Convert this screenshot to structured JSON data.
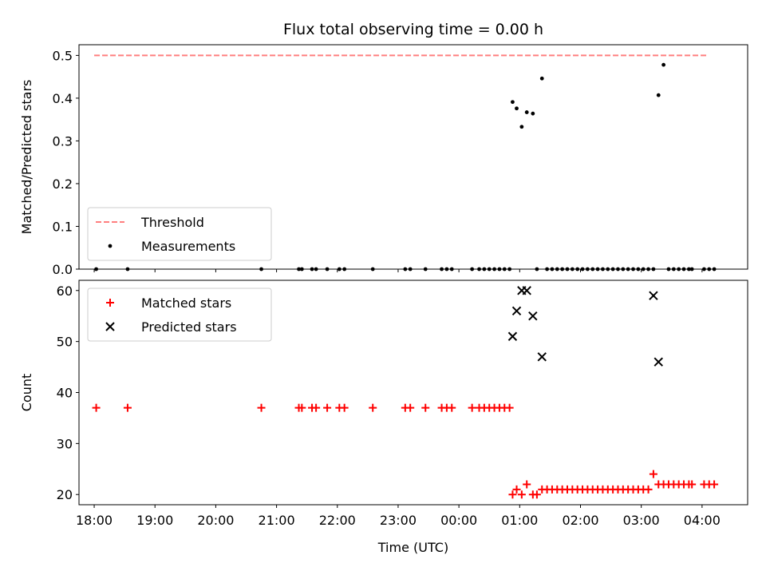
{
  "chart_data": [
    {
      "type": "scatter",
      "title": "Flux total observing time = 0.00 h",
      "xlabel": "",
      "ylabel": "Matched/Predicted stars",
      "ylim": [
        0,
        0.525
      ],
      "yticks": [
        0.0,
        0.1,
        0.2,
        0.3,
        0.4,
        0.5
      ],
      "ytick_labels": [
        "0.0",
        "0.1",
        "0.2",
        "0.3",
        "0.4",
        "0.5"
      ],
      "xlim": [
        "17:45",
        "04:45"
      ],
      "xticks": [
        "18:00",
        "19:00",
        "20:00",
        "21:00",
        "22:00",
        "23:00",
        "00:00",
        "01:00",
        "02:00",
        "03:00",
        "04:00"
      ],
      "grid": false,
      "legend": "lower-left",
      "series": [
        {
          "name": "Threshold",
          "kind": "line",
          "color": "#ff7f7f",
          "dashed": true,
          "x": [
            "18:00",
            "04:05"
          ],
          "y": [
            0.5,
            0.5
          ]
        },
        {
          "name": "Measurements",
          "kind": "dots",
          "color": "#000000",
          "x": [
            "18:02",
            "18:33",
            "20:45",
            "21:22",
            "21:25",
            "21:35",
            "21:39",
            "21:50",
            "22:02",
            "22:07",
            "22:35",
            "23:07",
            "23:12",
            "23:27",
            "23:43",
            "23:48",
            "23:53",
            "00:13",
            "00:20",
            "00:25",
            "00:30",
            "00:35",
            "00:40",
            "00:45",
            "00:50",
            "00:53",
            "00:57",
            "01:02",
            "01:07",
            "01:13",
            "01:17",
            "01:22",
            "01:27",
            "01:32",
            "01:37",
            "01:42",
            "01:47",
            "01:52",
            "01:57",
            "02:02",
            "02:07",
            "02:12",
            "02:17",
            "02:22",
            "02:27",
            "02:32",
            "02:37",
            "02:42",
            "02:47",
            "02:52",
            "02:57",
            "03:02",
            "03:07",
            "03:12",
            "03:17",
            "03:22",
            "03:27",
            "03:32",
            "03:37",
            "03:42",
            "03:47",
            "03:50",
            "04:02",
            "04:07",
            "04:12"
          ],
          "y": [
            0,
            0,
            0,
            0,
            0,
            0,
            0,
            0,
            0,
            0,
            0,
            0,
            0,
            0,
            0,
            0,
            0,
            0,
            0,
            0,
            0,
            0,
            0,
            0,
            0,
            0.391,
            0.376,
            0.333,
            0.367,
            0.364,
            0,
            0.446,
            0,
            0,
            0,
            0,
            0,
            0,
            0,
            0,
            0,
            0,
            0,
            0,
            0,
            0,
            0,
            0,
            0,
            0,
            0,
            0,
            0,
            0,
            0.407,
            0.478,
            0,
            0,
            0,
            0,
            0,
            0,
            0,
            0,
            0
          ]
        }
      ]
    },
    {
      "type": "scatter",
      "title": "",
      "xlabel": "Time (UTC)",
      "ylabel": "Count",
      "ylim": [
        18,
        62
      ],
      "yticks": [
        20,
        30,
        40,
        50,
        60
      ],
      "ytick_labels": [
        "20",
        "30",
        "40",
        "50",
        "60"
      ],
      "xlim": [
        "17:45",
        "04:45"
      ],
      "xticks": [
        "18:00",
        "19:00",
        "20:00",
        "21:00",
        "22:00",
        "23:00",
        "00:00",
        "01:00",
        "02:00",
        "03:00",
        "04:00"
      ],
      "grid": false,
      "legend": "upper-left",
      "series": [
        {
          "name": "Matched stars",
          "kind": "plus",
          "color": "#ff0000",
          "x": [
            "18:02",
            "18:33",
            "20:45",
            "21:22",
            "21:25",
            "21:35",
            "21:39",
            "21:50",
            "22:02",
            "22:07",
            "22:35",
            "23:07",
            "23:12",
            "23:27",
            "23:43",
            "23:48",
            "23:53",
            "00:13",
            "00:20",
            "00:25",
            "00:30",
            "00:35",
            "00:40",
            "00:45",
            "00:50",
            "00:53",
            "00:57",
            "01:02",
            "01:07",
            "01:13",
            "01:17",
            "01:22",
            "01:27",
            "01:32",
            "01:37",
            "01:42",
            "01:47",
            "01:52",
            "01:57",
            "02:02",
            "02:07",
            "02:12",
            "02:17",
            "02:22",
            "02:27",
            "02:32",
            "02:37",
            "02:42",
            "02:47",
            "02:52",
            "02:57",
            "03:02",
            "03:07",
            "03:12",
            "03:17",
            "03:22",
            "03:27",
            "03:32",
            "03:37",
            "03:42",
            "03:47",
            "03:50",
            "04:02",
            "04:07",
            "04:12"
          ],
          "y": [
            37,
            37,
            37,
            37,
            37,
            37,
            37,
            37,
            37,
            37,
            37,
            37,
            37,
            37,
            37,
            37,
            37,
            37,
            37,
            37,
            37,
            37,
            37,
            37,
            37,
            20,
            21,
            20,
            22,
            20,
            20,
            21,
            21,
            21,
            21,
            21,
            21,
            21,
            21,
            21,
            21,
            21,
            21,
            21,
            21,
            21,
            21,
            21,
            21,
            21,
            21,
            21,
            21,
            24,
            22,
            22,
            22,
            22,
            22,
            22,
            22,
            22,
            22,
            22,
            22
          ]
        },
        {
          "name": "Predicted stars",
          "kind": "x",
          "color": "#000000",
          "x": [
            "00:53",
            "00:57",
            "01:02",
            "01:07",
            "01:13",
            "01:22",
            "03:12",
            "03:17"
          ],
          "y": [
            51,
            56,
            60,
            60,
            55,
            47,
            59,
            46
          ]
        }
      ]
    }
  ]
}
